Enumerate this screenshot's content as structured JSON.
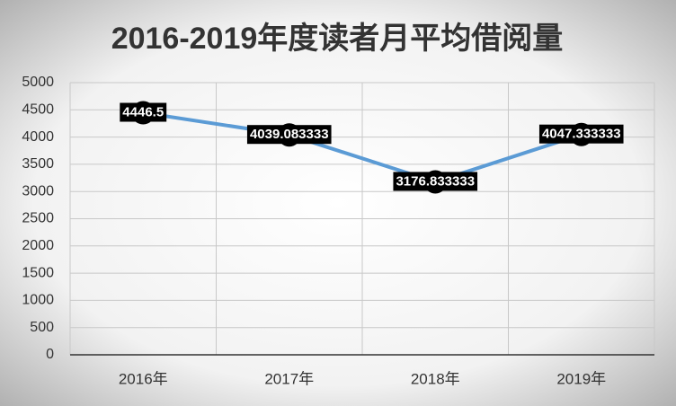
{
  "chart_data": {
    "type": "line",
    "title": "2016-2019年度读者月平均借阅量",
    "categories": [
      "2016年",
      "2017年",
      "2018年",
      "2019年"
    ],
    "values": [
      4446.5,
      4039.083333,
      3176.833333,
      4047.333333
    ],
    "color": "#5b9bd5",
    "marker_color": "#000000",
    "ylim": [
      0,
      5000
    ],
    "yticks": [
      0,
      500,
      1000,
      1500,
      2000,
      2500,
      3000,
      3500,
      4000,
      4500,
      5000
    ],
    "grid": true
  }
}
